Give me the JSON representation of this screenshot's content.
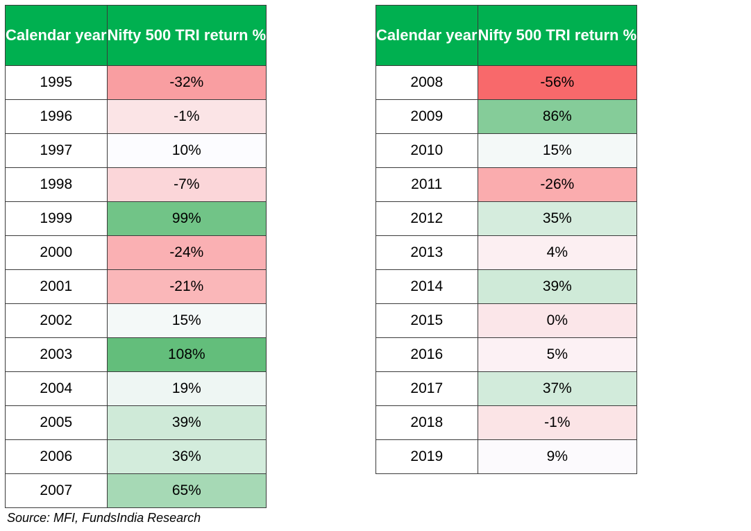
{
  "chart_data": {
    "type": "table",
    "columns": [
      "Calendar year",
      "Nifty 500 TRI return %",
      "Calendar year",
      "Nifty 500 TRI return %"
    ],
    "rows_left": [
      {
        "year": "1995",
        "ret": "-32%",
        "value": -32
      },
      {
        "year": "1996",
        "ret": "-1%",
        "value": -1
      },
      {
        "year": "1997",
        "ret": "10%",
        "value": 10
      },
      {
        "year": "1998",
        "ret": "-7%",
        "value": -7
      },
      {
        "year": "1999",
        "ret": "99%",
        "value": 99
      },
      {
        "year": "2000",
        "ret": "-24%",
        "value": -24
      },
      {
        "year": "2001",
        "ret": "-21%",
        "value": -21
      },
      {
        "year": "2002",
        "ret": "15%",
        "value": 15
      },
      {
        "year": "2003",
        "ret": "108%",
        "value": 108
      },
      {
        "year": "2004",
        "ret": "19%",
        "value": 19
      },
      {
        "year": "2005",
        "ret": "39%",
        "value": 39
      },
      {
        "year": "2006",
        "ret": "36%",
        "value": 36
      },
      {
        "year": "2007",
        "ret": "65%",
        "value": 65
      }
    ],
    "rows_right": [
      {
        "year": "2008",
        "ret": "-56%",
        "value": -56
      },
      {
        "year": "2009",
        "ret": "86%",
        "value": 86
      },
      {
        "year": "2010",
        "ret": "15%",
        "value": 15
      },
      {
        "year": "2011",
        "ret": "-26%",
        "value": -26
      },
      {
        "year": "2012",
        "ret": "35%",
        "value": 35
      },
      {
        "year": "2013",
        "ret": "4%",
        "value": 4
      },
      {
        "year": "2014",
        "ret": "39%",
        "value": 39
      },
      {
        "year": "2015",
        "ret": "0%",
        "value": 0
      },
      {
        "year": "2016",
        "ret": "5%",
        "value": 5
      },
      {
        "year": "2017",
        "ret": "37%",
        "value": 37
      },
      {
        "year": "2018",
        "ret": "-1%",
        "value": -1
      },
      {
        "year": "2019",
        "ret": "9%",
        "value": 9
      }
    ],
    "colors": {
      "header_bg": "#00b050",
      "header_text": "#ffffff",
      "negative_max": "#f8696b",
      "neutral": "#fcfcff",
      "positive_max": "#63be7b"
    }
  },
  "source": "Source: MFI, FundsIndia Research"
}
